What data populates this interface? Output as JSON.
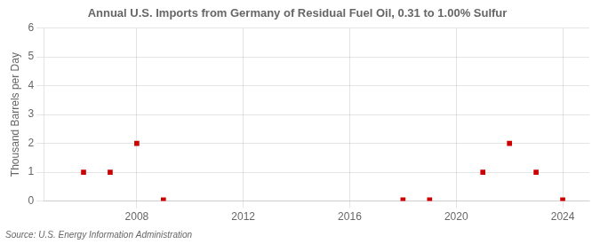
{
  "chart_data": {
    "type": "scatter",
    "title": "Annual U.S. Imports from Germany of Residual Fuel Oil, 0.31 to 1.00% Sulfur",
    "ylabel": "Thousand Barrels per Day",
    "annotations": [
      "Source: U.S. Energy Information Administration"
    ],
    "x": [
      2006,
      2007,
      2008,
      2009,
      2018,
      2019,
      2021,
      2022,
      2023,
      2024
    ],
    "values": [
      1,
      1,
      2,
      0.04,
      0.04,
      0.04,
      1,
      2,
      1,
      0.04
    ],
    "color": "#cc0000",
    "marker": "square",
    "xlim": [
      2004.5,
      2025.0
    ],
    "ylim": [
      0,
      6
    ],
    "xticks": [
      2008,
      2012,
      2016,
      2020,
      2024
    ],
    "yticks": [
      0,
      1,
      2,
      3,
      4,
      5,
      6
    ],
    "grid": true
  }
}
